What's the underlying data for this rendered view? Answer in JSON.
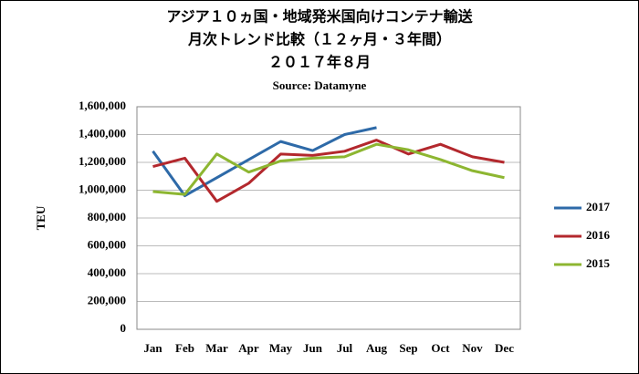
{
  "chart_data": {
    "type": "line",
    "title": [
      "アジア１０ヵ国・地域発米国向けコンテナ輸送",
      "月次トレンド比較（１２ヶ月・３年間）",
      "２０１７年８月"
    ],
    "subtitle": "Source: Datamyne",
    "y_label": "TEU",
    "categories": [
      "Jan",
      "Feb",
      "Mar",
      "Apr",
      "May",
      "Jun",
      "Jul",
      "Aug",
      "Sep",
      "Oct",
      "Nov",
      "Dec"
    ],
    "series": [
      {
        "name": "2017",
        "color": "#2e6aa8",
        "values": [
          1280000,
          960000,
          1090000,
          1220000,
          1350000,
          1285000,
          1400000,
          1450000,
          null,
          null,
          null,
          null
        ]
      },
      {
        "name": "2016",
        "color": "#b3282d",
        "values": [
          1170000,
          1230000,
          920000,
          1050000,
          1260000,
          1250000,
          1280000,
          1360000,
          1260000,
          1330000,
          1240000,
          1200000
        ]
      },
      {
        "name": "2015",
        "color": "#8db631",
        "values": [
          990000,
          970000,
          1260000,
          1130000,
          1210000,
          1230000,
          1240000,
          1330000,
          1290000,
          1220000,
          1140000,
          1090000
        ]
      }
    ],
    "ylim": [
      0,
      1600000
    ],
    "yticks": [
      0,
      {
        "value": 200000,
        "label": "200,000"
      },
      {
        "value": 400000,
        "label": "400,000"
      },
      {
        "value": 600000,
        "label": "600,000"
      },
      {
        "value": 800000,
        "label": "800,000"
      },
      {
        "value": 1000000,
        "label": "1,000,000"
      },
      {
        "value": 1200000,
        "label": "1,200,000"
      },
      {
        "value": 1400000,
        "label": "1,400,000"
      },
      {
        "value": 1600000,
        "label": "1,600,000"
      }
    ],
    "grid": true,
    "legend": "right"
  }
}
